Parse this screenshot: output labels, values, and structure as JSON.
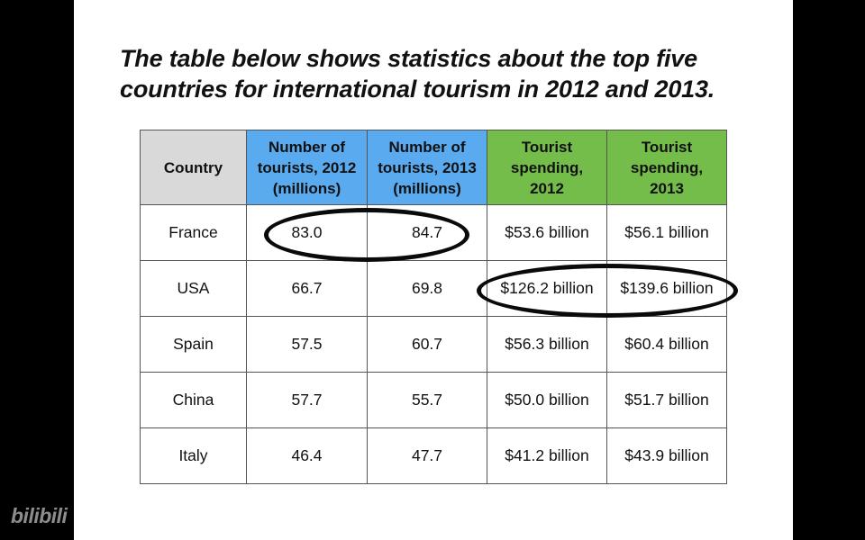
{
  "slide": {
    "title": "The table below shows statistics about the top five countries for international tourism in 2012 and 2013."
  },
  "table": {
    "headers": [
      "Country",
      "Number of tourists, 2012 (millions)",
      "Number of tourists, 2013 (millions)",
      "Tourist spending, 2012",
      "Tourist spending, 2013"
    ],
    "header_colors": [
      "#d9d9d9",
      "#5aaaf0",
      "#5aaaf0",
      "#74bd4a",
      "#74bd4a"
    ],
    "rows": [
      [
        "France",
        "83.0",
        "84.7",
        "$53.6 billion",
        "$56.1 billion"
      ],
      [
        "USA",
        "66.7",
        "69.8",
        "$126.2 billion",
        "$139.6 billion"
      ],
      [
        "Spain",
        "57.5",
        "60.7",
        "$56.3 billion",
        "$60.4 billion"
      ],
      [
        "China",
        "57.7",
        "55.7",
        "$50.0 billion",
        "$51.7 billion"
      ],
      [
        "Italy",
        "46.4",
        "47.7",
        "$41.2 billion",
        "$43.9 billion"
      ]
    ]
  },
  "annotations": [
    {
      "name": "france-tourists-circle",
      "row": "France",
      "columns": [
        "Number of tourists, 2012 (millions)",
        "Number of tourists, 2013 (millions)"
      ]
    },
    {
      "name": "usa-spending-circle",
      "row": "USA",
      "columns": [
        "Tourist spending, 2012",
        "Tourist spending, 2013"
      ]
    }
  ],
  "watermark": {
    "text": "bilibili"
  }
}
